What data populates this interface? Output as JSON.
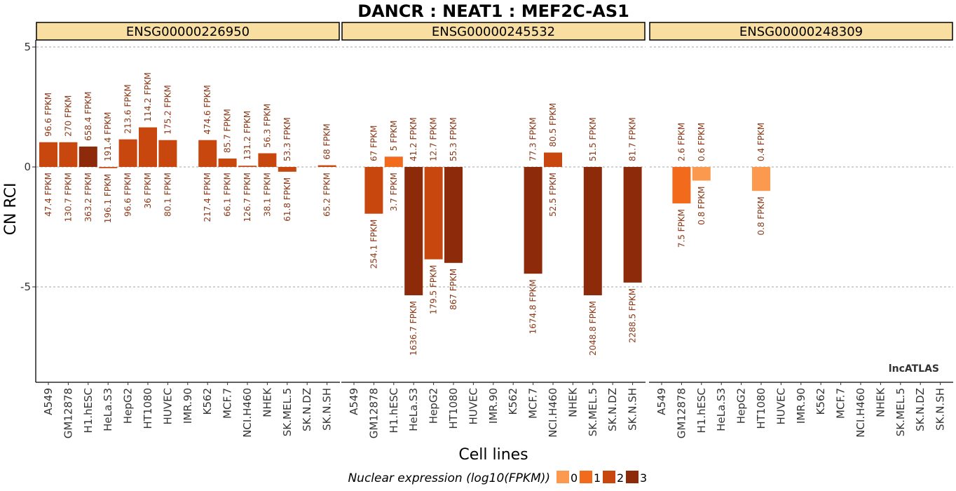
{
  "chart_data": {
    "type": "bar",
    "title": "DANCR : NEAT1 : MEF2C-AS1",
    "xlabel": "Cell lines",
    "ylabel": "CN RCI",
    "ylim": [
      -9,
      6
    ],
    "yticks": [
      5,
      0,
      -5
    ],
    "ytick_labels": [
      "5",
      "0",
      "-5"
    ],
    "grid": "horizontal dashed",
    "watermark": "lncATLAS",
    "categories": [
      "A549",
      "GM12878",
      "H1.hESC",
      "HeLa.S3",
      "HepG2",
      "HT1080",
      "HUVEC",
      "IMR.90",
      "K562",
      "MCF.7",
      "NCI.H460",
      "NHEK",
      "SK.MEL.5",
      "SK.N.DZ",
      "SK.N.SH"
    ],
    "legend": {
      "title": "Nuclear expression (log10(FPKM))",
      "position": "bottom",
      "levels": [
        {
          "label": "0",
          "color": "#fb9a4e"
        },
        {
          "label": "1",
          "color": "#f26b1d"
        },
        {
          "label": "2",
          "color": "#c7470e"
        },
        {
          "label": "3",
          "color": "#8c2a0a"
        }
      ]
    },
    "panels": [
      {
        "name": "ENSG00000226950",
        "values": [
          1.03,
          1.03,
          0.85,
          -0.05,
          1.15,
          1.65,
          1.12,
          null,
          1.12,
          0.35,
          0.05,
          0.57,
          -0.2,
          null,
          0.07
        ],
        "cyto_fpkm": [
          "96.6 FPKM",
          "270 FPKM",
          "658.4 FPKM",
          "191.4 FPKM",
          "213.6 FPKM",
          "114.2 FPKM",
          "175.2 FPKM",
          "",
          "474.6 FPKM",
          "85.7 FPKM",
          "131.2 FPKM",
          "56.3 FPKM",
          "53.3 FPKM",
          "",
          "68 FPKM"
        ],
        "nuc_fpkm": [
          "47.4 FPKM",
          "130.7 FPKM",
          "363.2 FPKM",
          "196.1 FPKM",
          "96.6 FPKM",
          "36 FPKM",
          "80.1 FPKM",
          "",
          "217.4 FPKM",
          "66.1 FPKM",
          "126.7 FPKM",
          "38.1 FPKM",
          "61.8 FPKM",
          "",
          "65.2 FPKM"
        ],
        "level": [
          2,
          2,
          3,
          2,
          2,
          2,
          2,
          null,
          2,
          2,
          2,
          2,
          2,
          null,
          2
        ]
      },
      {
        "name": "ENSG00000245532",
        "values": [
          null,
          -1.95,
          0.43,
          -5.35,
          -3.85,
          -4.0,
          null,
          null,
          null,
          -4.45,
          0.6,
          null,
          -5.35,
          null,
          -4.82
        ],
        "cyto_fpkm": [
          "",
          "67 FPKM",
          "5 FPKM",
          "41.2 FPKM",
          "12.7 FPKM",
          "55.3 FPKM",
          "",
          "",
          "",
          "77.3 FPKM",
          "80.5 FPKM",
          "",
          "51.5 FPKM",
          "",
          "81.7 FPKM"
        ],
        "nuc_fpkm": [
          "",
          "254.1 FPKM",
          "3.7 FPKM",
          "1636.7 FPKM",
          "179.5 FPKM",
          "867 FPKM",
          "",
          "",
          "",
          "1674.8 FPKM",
          "52.5 FPKM",
          "",
          "2048.8 FPKM",
          "",
          "2288.5 FPKM"
        ],
        "level": [
          null,
          2,
          1,
          3,
          2,
          3,
          null,
          null,
          null,
          3,
          2,
          null,
          3,
          null,
          3
        ]
      },
      {
        "name": "ENSG00000248309",
        "values": [
          null,
          -1.52,
          -0.57,
          null,
          null,
          -1.0,
          null,
          null,
          null,
          null,
          null,
          null,
          null,
          null,
          null
        ],
        "cyto_fpkm": [
          "",
          "2.6 FPKM",
          "0.6 FPKM",
          "",
          "",
          "0.4 FPKM",
          "",
          "",
          "",
          "",
          "",
          "",
          "",
          "",
          ""
        ],
        "nuc_fpkm": [
          "",
          "7.5 FPKM",
          "0.8 FPKM",
          "",
          "",
          "0.8 FPKM",
          "",
          "",
          "",
          "",
          "",
          "",
          "",
          "",
          ""
        ],
        "level": [
          null,
          1,
          0,
          null,
          null,
          0,
          null,
          null,
          null,
          null,
          null,
          null,
          null,
          null,
          null
        ]
      }
    ]
  }
}
